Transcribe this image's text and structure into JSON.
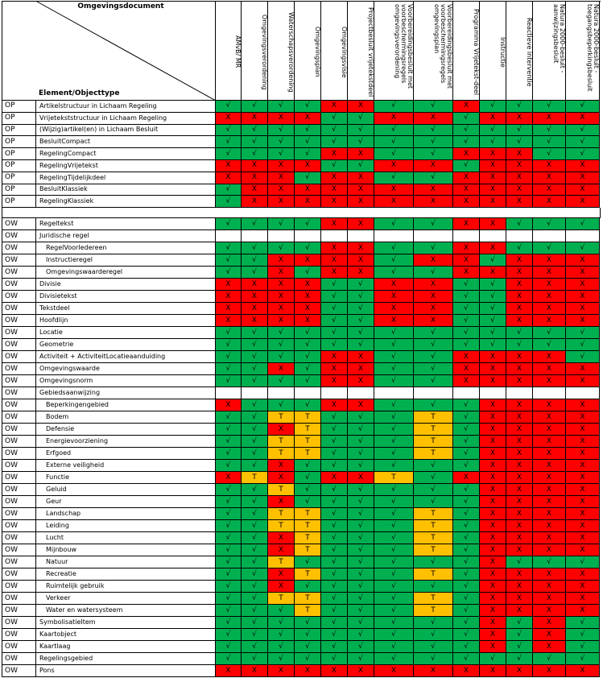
{
  "header": {
    "corner_top": "Omgevingsdocument",
    "corner_bottom": "Element/Objecttype"
  },
  "columns": [
    "AMvB/ MR",
    "Omgevingsverordening",
    "Waterschapsverordening",
    "Omgevingsplan",
    "Omgevingsvisie",
    "Projectbesluit vrijetekstdeel",
    "Voorbereidingsbesluit met voorbeschermingsregels omgevingsverordening",
    "Voorbereidingsbesluit met voorbeschermingsregels omgevingsplan",
    "Programma Vrijetekst-deel",
    "Instructie",
    "Reactieve interventie",
    "Natura 2000-besluit - aanwijzingsbesluit",
    "Natura 2000-besluit - toegangsbeperkingsbesluit"
  ],
  "colors": {
    "√": "#00b050",
    "X": "#ff0000",
    "T": "#ffc000"
  },
  "sections": [
    {
      "rows": [
        {
          "type": "OP",
          "element": "Artikelstructuur in Lichaam Regeling",
          "cells": [
            "√",
            "√",
            "√",
            "√",
            "X",
            "X",
            "√",
            "√",
            "X",
            "√",
            "√",
            "√",
            "√"
          ]
        },
        {
          "type": "OP",
          "element": "Vrijetekststructuur in Lichaam Regeling",
          "cells": [
            "X",
            "X",
            "X",
            "X",
            "√",
            "√",
            "X",
            "X",
            "√",
            "X",
            "X",
            "X",
            "X"
          ]
        },
        {
          "type": "OP",
          "element": "(Wijzig)artikel(en) in Lichaam Besluit",
          "cells": [
            "√",
            "√",
            "√",
            "√",
            "√",
            "√",
            "√",
            "√",
            "√",
            "√",
            "√",
            "√",
            "√"
          ]
        },
        {
          "type": "OP",
          "element": "BesluitCompact",
          "cells": [
            "√",
            "√",
            "√",
            "√",
            "√",
            "√",
            "√",
            "√",
            "√",
            "√",
            "√",
            "√",
            "√"
          ]
        },
        {
          "type": "OP",
          "element": "RegelingCompact",
          "cells": [
            "√",
            "√",
            "√",
            "√",
            "X",
            "X",
            "√",
            "√",
            "X",
            "X",
            "X",
            "√",
            "√"
          ]
        },
        {
          "type": "OP",
          "element": "RegelingVrijetekst",
          "cells": [
            "X",
            "X",
            "X",
            "X",
            "√",
            "√",
            "X",
            "X",
            "√",
            "X",
            "X",
            "X",
            "X"
          ]
        },
        {
          "type": "OP",
          "element": "RegelingTijdelijkdeel",
          "cells": [
            "X",
            "X",
            "X",
            "√",
            "X",
            "X",
            "√",
            "√",
            "X",
            "X",
            "X",
            "X",
            "X"
          ]
        },
        {
          "type": "OP",
          "element": "BesluitKlassiek",
          "cells": [
            "√",
            "X",
            "X",
            "X",
            "X",
            "X",
            "X",
            "X",
            "X",
            "X",
            "X",
            "X",
            "X"
          ]
        },
        {
          "type": "OP",
          "element": "RegelingKlassiek",
          "cells": [
            "√",
            "X",
            "X",
            "X",
            "X",
            "X",
            "X",
            "X",
            "X",
            "X",
            "X",
            "X",
            "X"
          ]
        }
      ]
    },
    {
      "rows": [
        {
          "type": "OW",
          "element": "Regeltekst",
          "cells": [
            "√",
            "√",
            "√",
            "√",
            "X",
            "X",
            "√",
            "√",
            "X",
            "X",
            "√",
            "√",
            "√"
          ]
        },
        {
          "type": "OW",
          "element": "Juridische regel",
          "children": [
            {
              "type": "OW",
              "element": "RegelVoorIedereen",
              "cells": [
                "√",
                "√",
                "√",
                "√",
                "X",
                "X",
                "√",
                "√",
                "X",
                "X",
                "√",
                "√",
                "√"
              ]
            },
            {
              "type": "OW",
              "element": "Instructieregel",
              "cells": [
                "√",
                "√",
                "X",
                "X",
                "X",
                "X",
                "√",
                "X",
                "X",
                "√",
                "X",
                "X",
                "X"
              ]
            },
            {
              "type": "OW",
              "element": "Omgevingswaarderegel",
              "cells": [
                "√",
                "√",
                "X",
                "√",
                "X",
                "X",
                "√",
                "√",
                "X",
                "X",
                "X",
                "X",
                "X"
              ]
            }
          ]
        },
        {
          "type": "OW",
          "element": "Divisie",
          "cells": [
            "X",
            "X",
            "X",
            "X",
            "√",
            "√",
            "X",
            "X",
            "√",
            "√",
            "X",
            "X",
            "X"
          ]
        },
        {
          "type": "OW",
          "element": "Divisietekst",
          "cells": [
            "X",
            "X",
            "X",
            "X",
            "√",
            "√",
            "X",
            "X",
            "√",
            "√",
            "X",
            "X",
            "X"
          ]
        },
        {
          "type": "OW",
          "element": "Tekstdeel",
          "cells": [
            "X",
            "X",
            "X",
            "X",
            "√",
            "√",
            "X",
            "X",
            "√",
            "√",
            "X",
            "X",
            "X"
          ]
        },
        {
          "type": "OW",
          "element": "Hoofdlijn",
          "cells": [
            "X",
            "X",
            "X",
            "X",
            "√",
            "√",
            "X",
            "X",
            "√",
            "√",
            "X",
            "X",
            "X"
          ]
        },
        {
          "type": "OW",
          "element": "Locatie",
          "cells": [
            "√",
            "√",
            "√",
            "√",
            "√",
            "√",
            "√",
            "√",
            "√",
            "√",
            "√",
            "√",
            "√"
          ]
        },
        {
          "type": "OW",
          "element": "Geometrie",
          "cells": [
            "√",
            "√",
            "√",
            "√",
            "√",
            "√",
            "√",
            "√",
            "√",
            "√",
            "√",
            "√",
            "√"
          ]
        },
        {
          "type": "OW",
          "element": "Activiteit + ActiviteitLocatieaanduiding",
          "cells": [
            "√",
            "√",
            "√",
            "√",
            "X",
            "X",
            "√",
            "√",
            "X",
            "X",
            "X",
            "X",
            "√"
          ]
        },
        {
          "type": "OW",
          "element": "Omgevingswaarde",
          "cells": [
            "√",
            "√",
            "X",
            "√",
            "X",
            "X",
            "√",
            "√",
            "X",
            "X",
            "X",
            "X",
            "X"
          ]
        },
        {
          "type": "OW",
          "element": "Omgevingsnorm",
          "cells": [
            "√",
            "√",
            "√",
            "√",
            "X",
            "X",
            "√",
            "√",
            "X",
            "X",
            "X",
            "X",
            "X"
          ]
        },
        {
          "type": "OW",
          "element": "Gebiedsaanwijzing",
          "children": [
            {
              "type": "OW",
              "element": "Beperkingengebied",
              "cells": [
                "X",
                "√",
                "√",
                "√",
                "X",
                "X",
                "√",
                "√",
                "√",
                "X",
                "X",
                "X",
                "X"
              ]
            },
            {
              "type": "OW",
              "element": "Bodem",
              "cells": [
                "√",
                "√",
                "T",
                "T",
                "√",
                "√",
                "√",
                "T",
                "√",
                "X",
                "X",
                "X",
                "X"
              ]
            },
            {
              "type": "OW",
              "element": "Defensie",
              "cells": [
                "√",
                "√",
                "X",
                "T",
                "√",
                "√",
                "√",
                "T",
                "√",
                "X",
                "X",
                "X",
                "X"
              ]
            },
            {
              "type": "OW",
              "element": "Energievoorziening",
              "cells": [
                "√",
                "√",
                "T",
                "T",
                "√",
                "√",
                "√",
                "T",
                "√",
                "X",
                "X",
                "X",
                "X"
              ]
            },
            {
              "type": "OW",
              "element": "Erfgoed",
              "cells": [
                "√",
                "√",
                "T",
                "T",
                "√",
                "√",
                "√",
                "T",
                "√",
                "X",
                "X",
                "X",
                "X"
              ]
            },
            {
              "type": "OW",
              "element": "Externe veiligheid",
              "cells": [
                "√",
                "√",
                "X",
                "√",
                "√",
                "√",
                "√",
                "√",
                "√",
                "X",
                "X",
                "X",
                "X"
              ]
            },
            {
              "type": "OW",
              "element": "Functie",
              "cells": [
                "X",
                "T",
                "X",
                "√",
                "X",
                "X",
                "T",
                "√",
                "X",
                "X",
                "X",
                "X",
                "X"
              ]
            },
            {
              "type": "OW",
              "element": "Geluid",
              "cells": [
                "√",
                "√",
                "T",
                "√",
                "√",
                "√",
                "√",
                "√",
                "√",
                "X",
                "X",
                "X",
                "X"
              ]
            },
            {
              "type": "OW",
              "element": "Geur",
              "cells": [
                "√",
                "√",
                "X",
                "√",
                "√",
                "√",
                "√",
                "√",
                "√",
                "X",
                "X",
                "X",
                "X"
              ]
            },
            {
              "type": "OW",
              "element": "Landschap",
              "cells": [
                "√",
                "√",
                "T",
                "T",
                "√",
                "√",
                "√",
                "T",
                "√",
                "X",
                "X",
                "X",
                "X"
              ]
            },
            {
              "type": "OW",
              "element": "Leiding",
              "cells": [
                "√",
                "√",
                "T",
                "T",
                "√",
                "√",
                "√",
                "T",
                "√",
                "X",
                "X",
                "X",
                "X"
              ]
            },
            {
              "type": "OW",
              "element": "Lucht",
              "cells": [
                "√",
                "√",
                "X",
                "T",
                "√",
                "√",
                "√",
                "T",
                "√",
                "X",
                "X",
                "X",
                "X"
              ]
            },
            {
              "type": "OW",
              "element": "Mijnbouw",
              "cells": [
                "√",
                "√",
                "X",
                "T",
                "√",
                "√",
                "√",
                "T",
                "√",
                "X",
                "X",
                "X",
                "X"
              ]
            },
            {
              "type": "OW",
              "element": "Natuur",
              "cells": [
                "√",
                "√",
                "T",
                "√",
                "√",
                "√",
                "√",
                "√",
                "√",
                "X",
                "√",
                "√",
                "√"
              ]
            },
            {
              "type": "OW",
              "element": "Recreatie",
              "cells": [
                "√",
                "√",
                "X",
                "T",
                "√",
                "√",
                "√",
                "T",
                "√",
                "X",
                "X",
                "X",
                "X"
              ]
            },
            {
              "type": "OW",
              "element": "Ruimtelijk gebruik",
              "cells": [
                "√",
                "√",
                "X",
                "√",
                "√",
                "√",
                "√",
                "√",
                "√",
                "X",
                "X",
                "X",
                "X"
              ]
            },
            {
              "type": "OW",
              "element": "Verkeer",
              "cells": [
                "√",
                "√",
                "T",
                "T",
                "√",
                "√",
                "√",
                "T",
                "√",
                "X",
                "X",
                "X",
                "X"
              ]
            },
            {
              "type": "OW",
              "element": "Water en watersysteem",
              "cells": [
                "√",
                "√",
                "√",
                "T",
                "√",
                "√",
                "√",
                "T",
                "√",
                "X",
                "X",
                "X",
                "X"
              ]
            }
          ]
        },
        {
          "type": "OW",
          "element": "SymbolisatieItem",
          "cells": [
            "√",
            "√",
            "√",
            "√",
            "√",
            "√",
            "√",
            "√",
            "√",
            "X",
            "√",
            "X",
            "√"
          ]
        },
        {
          "type": "OW",
          "element": "Kaartobject",
          "cells": [
            "√",
            "√",
            "√",
            "√",
            "√",
            "√",
            "√",
            "√",
            "√",
            "X",
            "√",
            "X",
            "√"
          ]
        },
        {
          "type": "OW",
          "element": "Kaartlaag",
          "cells": [
            "√",
            "√",
            "√",
            "√",
            "√",
            "√",
            "√",
            "√",
            "√",
            "X",
            "√",
            "X",
            "√"
          ]
        },
        {
          "type": "OW",
          "element": "Regelingsgebied",
          "cells": [
            "√",
            "√",
            "√",
            "√",
            "√",
            "√",
            "√",
            "√",
            "√",
            "√",
            "√",
            "√",
            "√"
          ]
        },
        {
          "type": "OW",
          "element": "Pons",
          "cells": [
            "X",
            "X",
            "X",
            "X",
            "X",
            "X",
            "X",
            "X",
            "X",
            "X",
            "X",
            "X",
            "X"
          ]
        }
      ]
    }
  ]
}
